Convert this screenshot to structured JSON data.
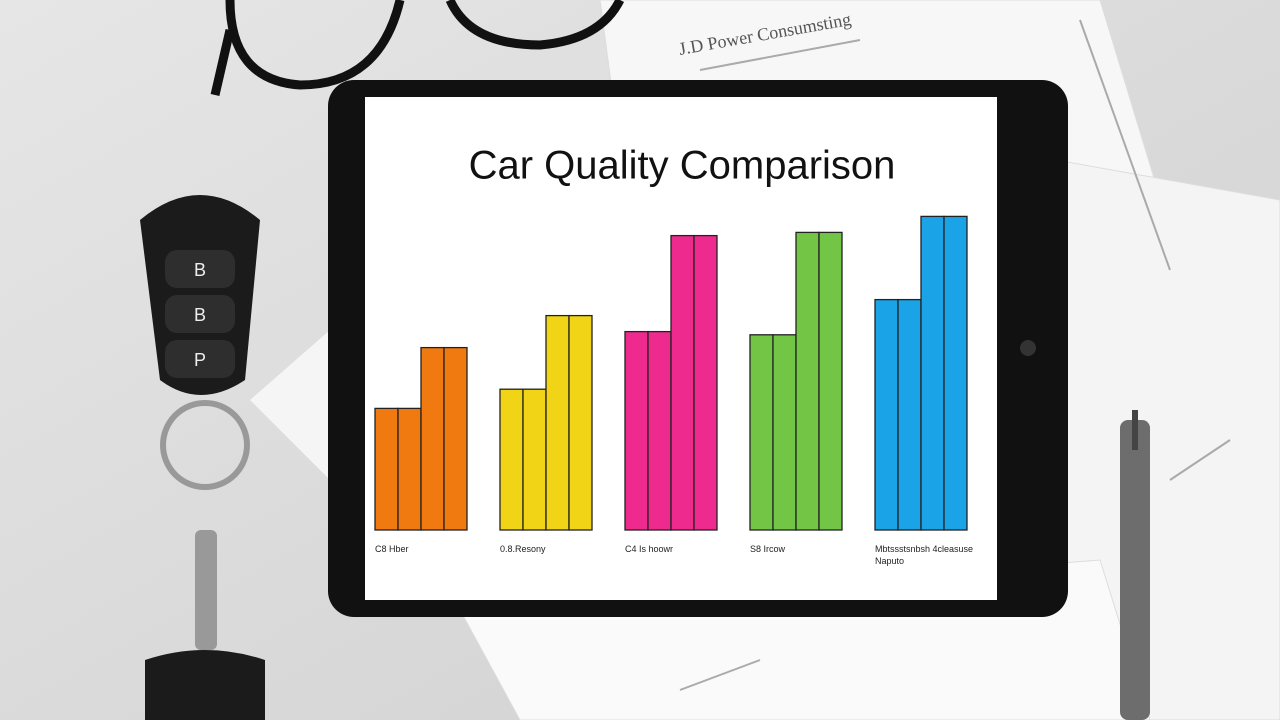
{
  "paper_header": "J.D Power Consumsting",
  "key_fob": {
    "buttons": [
      "B",
      "B",
      "P"
    ]
  },
  "chart_data": {
    "type": "bar",
    "title": "Car Quality Comparison",
    "ylim": [
      0,
      100
    ],
    "groups": [
      {
        "label": "C8 Hber",
        "color": "#f07a10",
        "values": [
          38,
          38,
          57,
          57
        ]
      },
      {
        "label": "0.8.Resony",
        "color": "#f2d417",
        "values": [
          44,
          44,
          67,
          67
        ]
      },
      {
        "label": "C4 Is hoowr",
        "color": "#ee2a8f",
        "values": [
          62,
          62,
          92,
          92
        ]
      },
      {
        "label": "S8 Ircow",
        "color": "#72c545",
        "values": [
          61,
          61,
          93,
          93
        ]
      },
      {
        "label": "Mbtssstsnbsh 4cleasuse Naputo",
        "color": "#1aa3e6",
        "values": [
          72,
          72,
          98,
          98
        ]
      }
    ]
  }
}
